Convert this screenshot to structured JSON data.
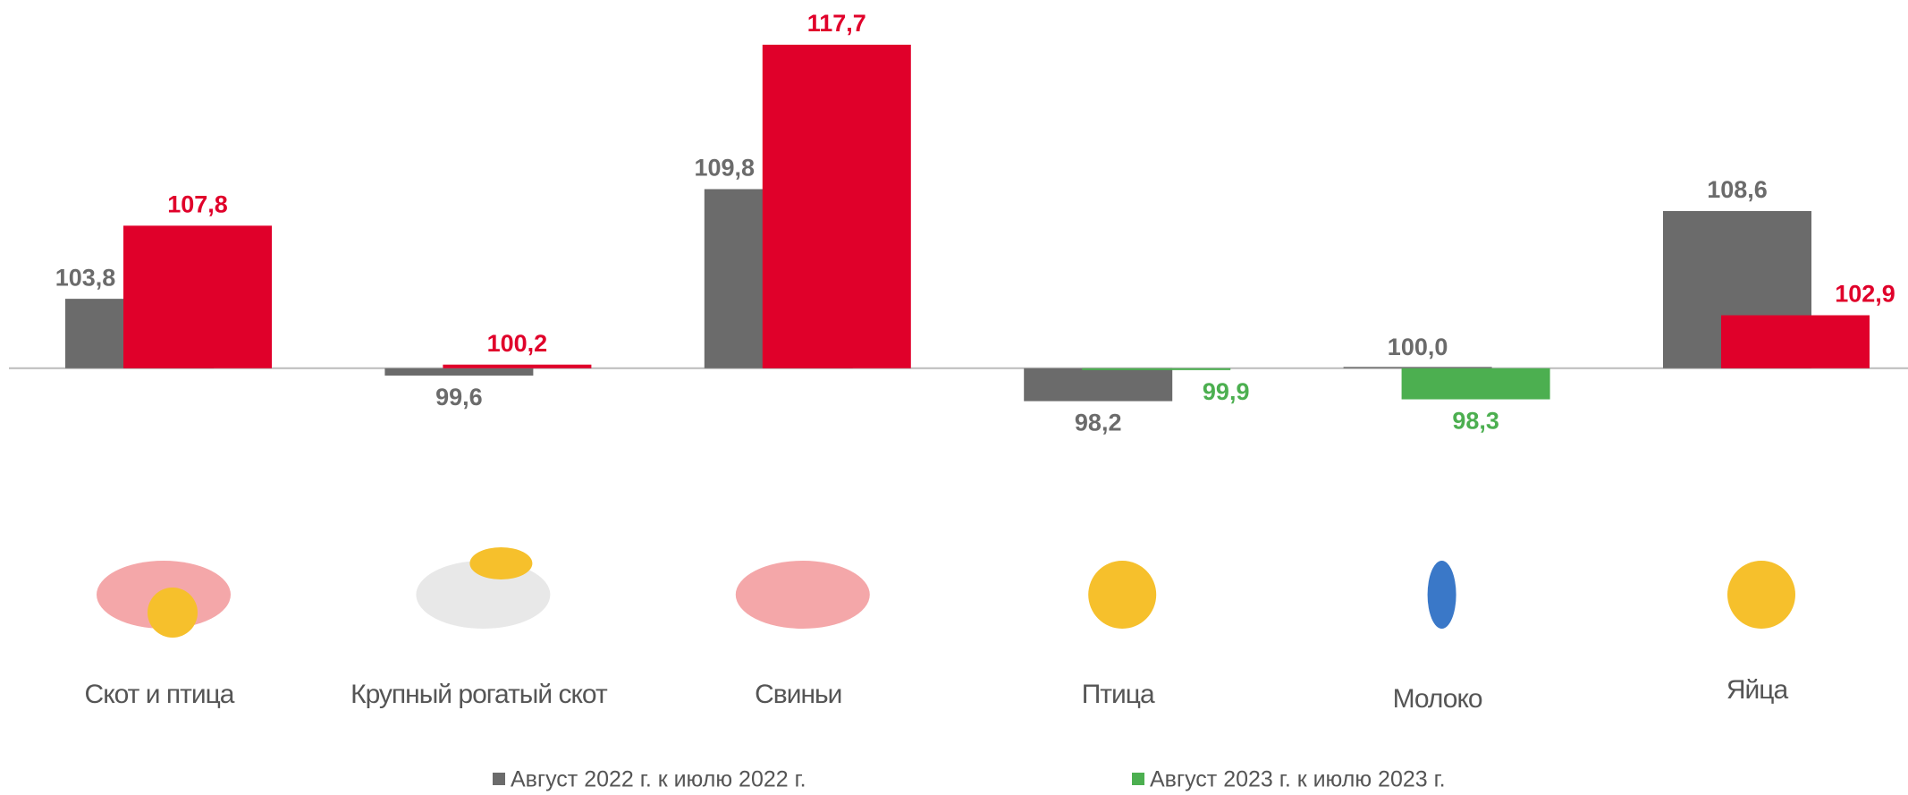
{
  "chart_data": {
    "type": "bar",
    "categories": [
      "Скот и птица",
      "Крупный рогатый скот",
      "Свиньи",
      "Птица",
      "Молоко",
      "Яйца"
    ],
    "baseline": 100,
    "ylim": [
      95,
      120
    ],
    "series": [
      {
        "name": "Август 2022 г. к июлю 2022 г.",
        "color": "#6b6b6b",
        "values": [
          103.8,
          99.6,
          109.8,
          98.2,
          100.0,
          108.6
        ],
        "value_labels": [
          "103,8",
          "99,6",
          "109,8",
          "98,2",
          "100,0",
          "108,6"
        ]
      },
      {
        "name": "Август 2023 г. к июлю 2023 г.",
        "color": "#4caf50",
        "colors": [
          "#e0002a",
          "#e0002a",
          "#e0002a",
          "#4caf50",
          "#4caf50",
          "#e0002a"
        ],
        "values": [
          107.8,
          100.2,
          117.7,
          99.9,
          98.3,
          102.9
        ],
        "value_labels": [
          "107,8",
          "100,2",
          "117,7",
          "99,9",
          "98,3",
          "102,9"
        ]
      }
    ]
  }
}
